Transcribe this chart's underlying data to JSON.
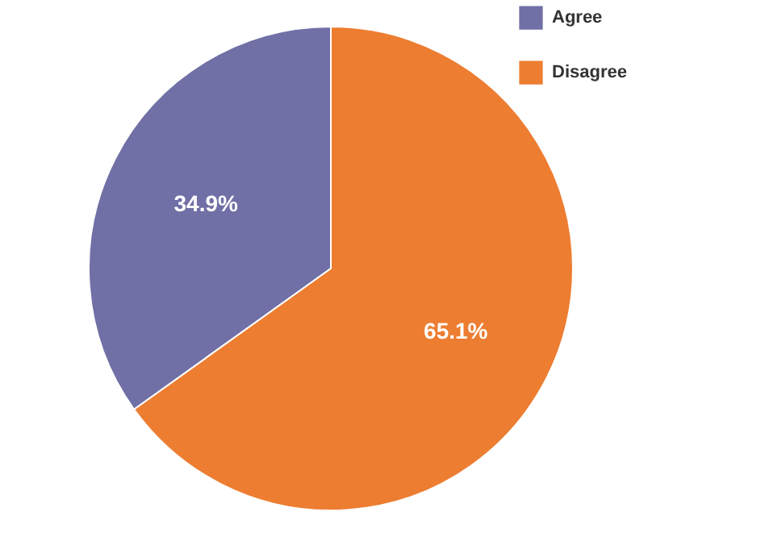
{
  "chart_data": {
    "type": "pie",
    "categories": [
      "Agree",
      "Disagree"
    ],
    "values": [
      34.9,
      65.1
    ],
    "colors": [
      "#7070a6",
      "#ed7d31"
    ],
    "value_labels": [
      "34.9%",
      "65.1%"
    ],
    "legend": "top right"
  }
}
